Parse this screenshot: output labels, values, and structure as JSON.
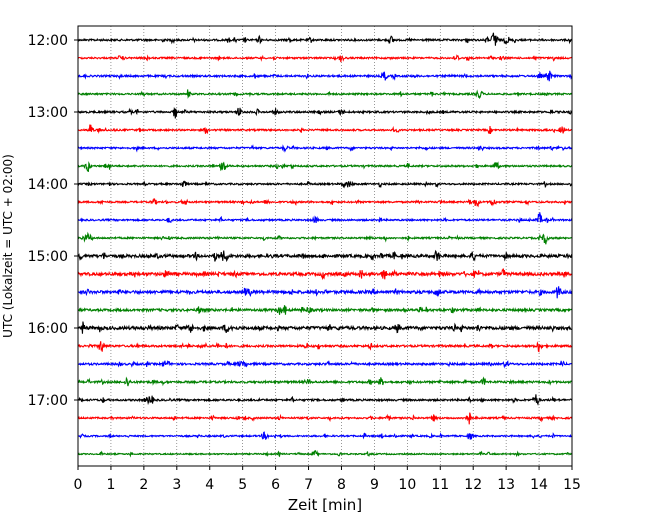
{
  "chart_data": {
    "type": "line",
    "subtype": "helicorder",
    "title": "",
    "xlabel": "Zeit  [min]",
    "ylabel": "UTC (Lokalzeit = UTC + 02:00)",
    "xlim": [
      0,
      15
    ],
    "x_ticks": [
      "0",
      "1",
      "2",
      "3",
      "4",
      "5",
      "6",
      "7",
      "8",
      "9",
      "10",
      "11",
      "12",
      "13",
      "14",
      "15"
    ],
    "y_tick_labels": [
      "12:00",
      "13:00",
      "14:00",
      "15:00",
      "16:00",
      "17:00"
    ],
    "grid_x": true,
    "trace_interval_min": 15,
    "trace_colors": [
      "#000000",
      "#ff0000",
      "#0000ff",
      "#008000"
    ],
    "traces": [
      {
        "start": "12:00",
        "color": "#000000",
        "activity": 1.0,
        "events": [
          [
            9.5,
            4
          ],
          [
            12.65,
            12
          ],
          [
            13.0,
            3
          ]
        ]
      },
      {
        "start": "12:15",
        "color": "#ff0000",
        "activity": 0.9,
        "events": [
          [
            8.0,
            4
          ],
          [
            11.5,
            3
          ]
        ]
      },
      {
        "start": "12:30",
        "color": "#0000ff",
        "activity": 1.0,
        "events": [
          [
            9.3,
            4
          ],
          [
            14.3,
            6
          ]
        ]
      },
      {
        "start": "12:45",
        "color": "#008000",
        "activity": 0.9,
        "events": [
          [
            12.2,
            4
          ]
        ]
      },
      {
        "start": "13:00",
        "color": "#000000",
        "activity": 1.0,
        "events": [
          [
            4.9,
            5
          ],
          [
            6.0,
            3
          ],
          [
            8.0,
            3
          ]
        ]
      },
      {
        "start": "13:15",
        "color": "#ff0000",
        "activity": 0.9,
        "events": [
          [
            0.4,
            3
          ],
          [
            14.7,
            4
          ]
        ]
      },
      {
        "start": "13:30",
        "color": "#0000ff",
        "activity": 0.9,
        "events": [
          [
            6.3,
            3
          ]
        ]
      },
      {
        "start": "13:45",
        "color": "#008000",
        "activity": 0.9,
        "events": [
          [
            0.3,
            6
          ],
          [
            4.4,
            7
          ],
          [
            12.7,
            4
          ]
        ]
      },
      {
        "start": "14:00",
        "color": "#000000",
        "activity": 0.9,
        "events": [
          [
            3.2,
            4
          ],
          [
            8.2,
            4
          ]
        ]
      },
      {
        "start": "14:15",
        "color": "#ff0000",
        "activity": 0.9,
        "events": [
          [
            2.3,
            3
          ],
          [
            12.1,
            5
          ],
          [
            12.6,
            4
          ]
        ]
      },
      {
        "start": "14:30",
        "color": "#0000ff",
        "activity": 0.9,
        "events": [
          [
            7.2,
            3
          ],
          [
            14.0,
            4
          ]
        ]
      },
      {
        "start": "14:45",
        "color": "#008000",
        "activity": 0.9,
        "events": [
          [
            0.3,
            4
          ],
          [
            14.2,
            7
          ]
        ]
      },
      {
        "start": "15:00",
        "color": "#000000",
        "activity": 1.6,
        "events": [
          [
            4.5,
            4
          ],
          [
            10.9,
            5
          ],
          [
            12.0,
            4
          ]
        ]
      },
      {
        "start": "15:15",
        "color": "#ff0000",
        "activity": 1.6,
        "events": [
          [
            2.7,
            4
          ],
          [
            9.3,
            5
          ],
          [
            14.8,
            4
          ]
        ]
      },
      {
        "start": "15:30",
        "color": "#0000ff",
        "activity": 1.6,
        "events": [
          [
            10.9,
            4
          ],
          [
            14.6,
            5
          ]
        ]
      },
      {
        "start": "15:45",
        "color": "#008000",
        "activity": 1.3,
        "events": [
          [
            3.7,
            4
          ],
          [
            7.0,
            3
          ]
        ]
      },
      {
        "start": "16:00",
        "color": "#000000",
        "activity": 1.7,
        "events": [
          [
            3.4,
            5
          ],
          [
            4.5,
            4
          ],
          [
            9.7,
            4
          ]
        ]
      },
      {
        "start": "16:15",
        "color": "#ff0000",
        "activity": 1.1,
        "events": [
          [
            0.7,
            7
          ],
          [
            14.0,
            6
          ]
        ]
      },
      {
        "start": "16:30",
        "color": "#0000ff",
        "activity": 1.1,
        "events": [
          [
            5.0,
            3
          ],
          [
            13.0,
            3
          ]
        ]
      },
      {
        "start": "16:45",
        "color": "#008000",
        "activity": 1.1,
        "events": [
          [
            1.5,
            4
          ],
          [
            9.2,
            4
          ]
        ]
      },
      {
        "start": "17:00",
        "color": "#000000",
        "activity": 1.0,
        "events": [
          [
            2.2,
            6
          ],
          [
            13.9,
            6
          ]
        ]
      },
      {
        "start": "17:15",
        "color": "#ff0000",
        "activity": 0.9,
        "events": [
          [
            10.8,
            3
          ],
          [
            11.85,
            9
          ]
        ]
      },
      {
        "start": "17:30",
        "color": "#0000ff",
        "activity": 0.8,
        "events": [
          [
            5.7,
            3
          ],
          [
            11.9,
            4
          ]
        ]
      },
      {
        "start": "17:45",
        "color": "#008000",
        "activity": 0.7,
        "events": [
          [
            7.2,
            3
          ]
        ]
      }
    ]
  }
}
